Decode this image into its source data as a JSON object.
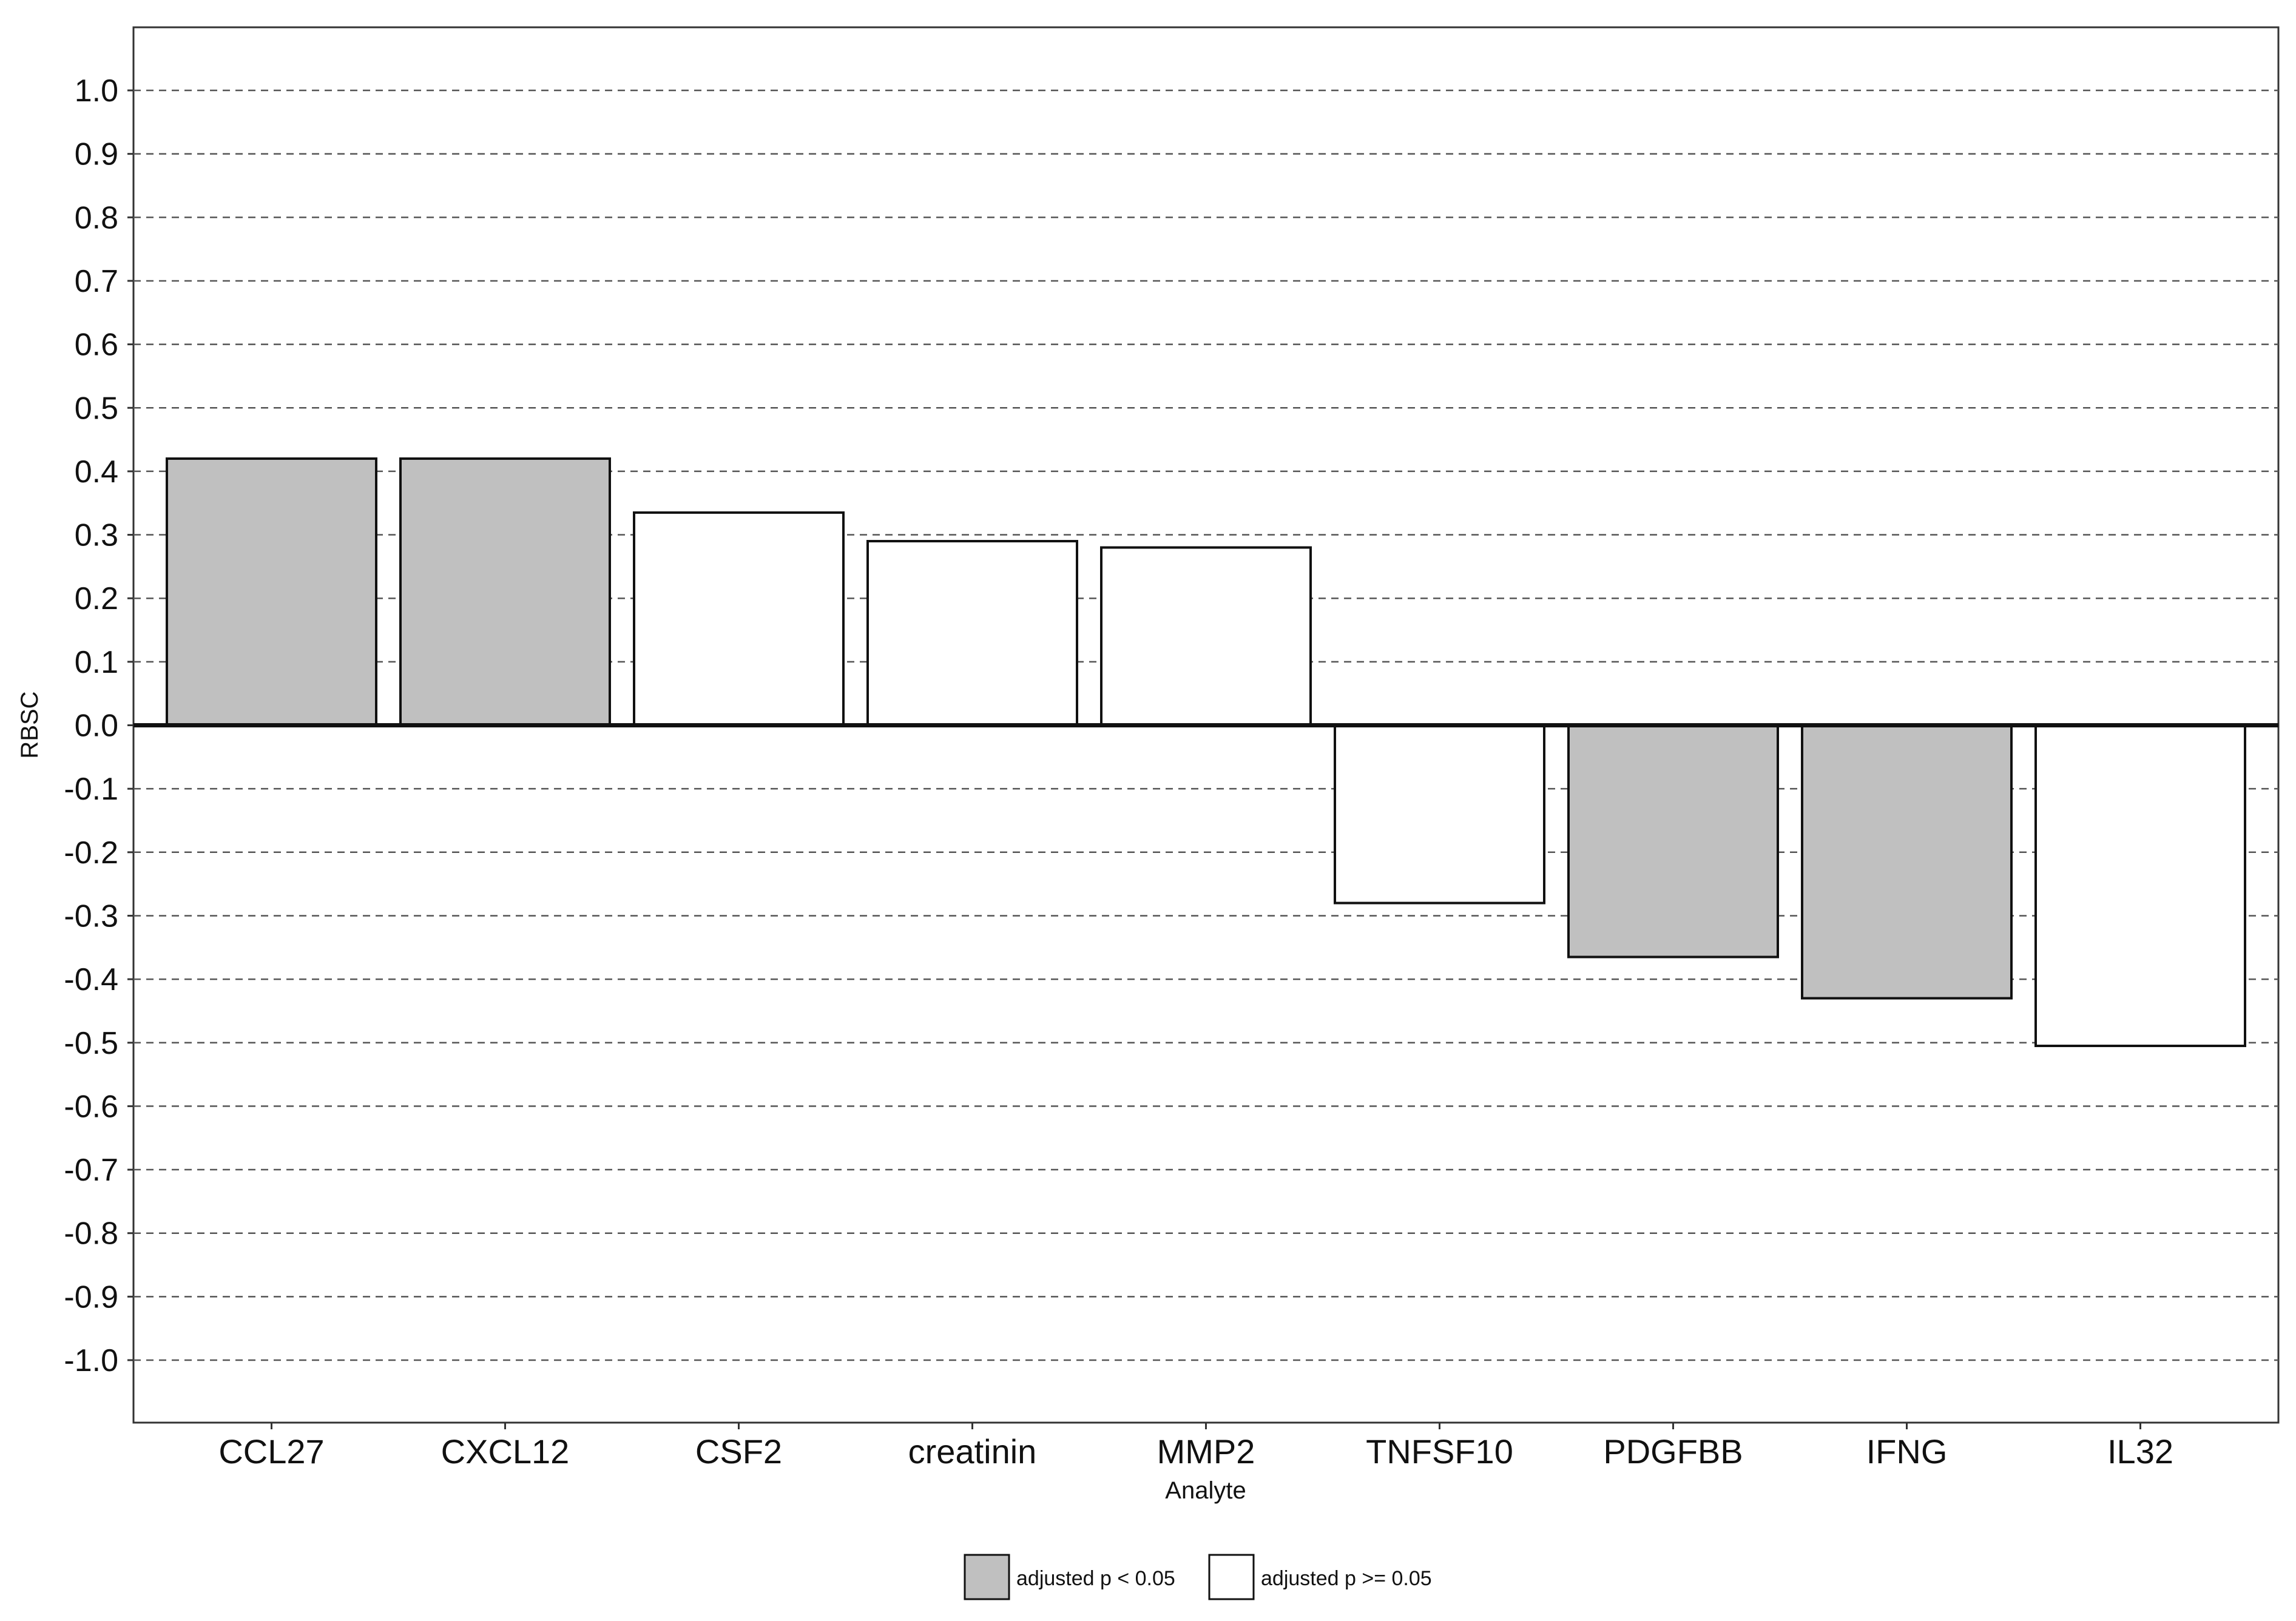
{
  "chart_data": {
    "type": "bar",
    "xlabel": "Analyte",
    "ylabel": "RBSC",
    "ylim": [
      -1.0,
      1.0
    ],
    "y_ticks": [
      "1.0",
      "0.9",
      "0.8",
      "0.7",
      "0.6",
      "0.5",
      "0.4",
      "0.3",
      "0.2",
      "0.1",
      "0.0",
      "-0.1",
      "-0.2",
      "-0.3",
      "-0.4",
      "-0.5",
      "-0.6",
      "-0.7",
      "-0.8",
      "-0.9",
      "-1.0"
    ],
    "grid": "horizontal dashed",
    "legend_position": "bottom",
    "categories": [
      "CCL27",
      "CXCL12",
      "CSF2",
      "creatinin",
      "MMP2",
      "TNFSF10",
      "PDGFBB",
      "IFNG",
      "IL32"
    ],
    "values": [
      0.42,
      0.42,
      0.335,
      0.29,
      0.28,
      -0.28,
      -0.365,
      -0.43,
      -0.505
    ],
    "significant": [
      true,
      true,
      false,
      false,
      false,
      false,
      true,
      true,
      false
    ],
    "legend": [
      {
        "label": "adjusted p < 0.05",
        "color": "#c0c0c0"
      },
      {
        "label": "adjusted p >= 0.05",
        "color": "#ffffff"
      }
    ]
  }
}
